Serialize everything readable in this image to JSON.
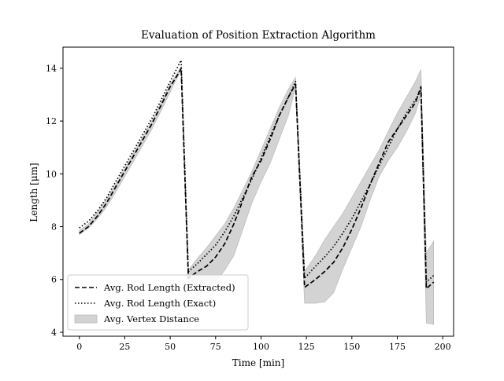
{
  "chart_data": {
    "type": "line",
    "title": "Evaluation of Position Extraction Algorithm",
    "xlabel": "Time [min]",
    "ylabel": "Length [μm]",
    "xlim": [
      -9,
      206
    ],
    "ylim": [
      3.85,
      14.8
    ],
    "xticks": [
      0,
      25,
      50,
      75,
      100,
      125,
      150,
      175,
      200
    ],
    "yticks": [
      4,
      6,
      8,
      10,
      12,
      14
    ],
    "grid": false,
    "legend_position": "lower-left",
    "colors": {
      "extracted": "#000000",
      "exact": "#000000",
      "band_fill": "#d3d3d3",
      "band_edge": "#bdbdbd"
    },
    "series": [
      {
        "name": "Avg. Rod Length (Extracted)",
        "style": "dashed",
        "points": [
          [
            0,
            7.75
          ],
          [
            5,
            8.0
          ],
          [
            10,
            8.4
          ],
          [
            15,
            8.9
          ],
          [
            20,
            9.5
          ],
          [
            25,
            10.1
          ],
          [
            30,
            10.7
          ],
          [
            35,
            11.3
          ],
          [
            40,
            11.9
          ],
          [
            45,
            12.6
          ],
          [
            50,
            13.3
          ],
          [
            55,
            13.85
          ],
          [
            56,
            14.0
          ],
          [
            60,
            6.05
          ],
          [
            65,
            6.3
          ],
          [
            70,
            6.5
          ],
          [
            75,
            6.85
          ],
          [
            80,
            7.35
          ],
          [
            85,
            8.1
          ],
          [
            90,
            9.0
          ],
          [
            95,
            9.9
          ],
          [
            100,
            10.5
          ],
          [
            105,
            11.3
          ],
          [
            110,
            12.2
          ],
          [
            115,
            12.9
          ],
          [
            119,
            13.4
          ],
          [
            124,
            5.7
          ],
          [
            130,
            6.0
          ],
          [
            135,
            6.3
          ],
          [
            140,
            6.65
          ],
          [
            145,
            7.2
          ],
          [
            150,
            7.9
          ],
          [
            155,
            8.7
          ],
          [
            160,
            9.6
          ],
          [
            165,
            10.4
          ],
          [
            170,
            11.2
          ],
          [
            175,
            11.7
          ],
          [
            180,
            12.2
          ],
          [
            185,
            12.7
          ],
          [
            188,
            13.3
          ],
          [
            191,
            5.65
          ],
          [
            195,
            5.9
          ]
        ]
      },
      {
        "name": "Avg. Rod Length (Exact)",
        "style": "dotted",
        "points": [
          [
            0,
            7.95
          ],
          [
            5,
            8.2
          ],
          [
            10,
            8.6
          ],
          [
            15,
            9.1
          ],
          [
            20,
            9.7
          ],
          [
            25,
            10.3
          ],
          [
            30,
            10.9
          ],
          [
            35,
            11.5
          ],
          [
            40,
            12.1
          ],
          [
            45,
            12.8
          ],
          [
            50,
            13.5
          ],
          [
            56,
            14.3
          ],
          [
            60,
            6.3
          ],
          [
            65,
            6.6
          ],
          [
            70,
            6.95
          ],
          [
            75,
            7.3
          ],
          [
            80,
            7.8
          ],
          [
            85,
            8.4
          ],
          [
            90,
            9.1
          ],
          [
            95,
            9.8
          ],
          [
            100,
            10.6
          ],
          [
            105,
            11.4
          ],
          [
            110,
            12.2
          ],
          [
            115,
            12.9
          ],
          [
            119,
            13.5
          ],
          [
            124,
            6.05
          ],
          [
            130,
            6.5
          ],
          [
            135,
            6.85
          ],
          [
            140,
            7.25
          ],
          [
            145,
            7.75
          ],
          [
            150,
            8.3
          ],
          [
            155,
            8.95
          ],
          [
            160,
            9.6
          ],
          [
            165,
            10.3
          ],
          [
            170,
            11.0
          ],
          [
            175,
            11.7
          ],
          [
            180,
            12.3
          ],
          [
            185,
            12.8
          ],
          [
            188,
            13.15
          ],
          [
            191,
            5.9
          ],
          [
            195,
            6.15
          ]
        ]
      }
    ],
    "band": {
      "name": "Avg. Vertex Distance",
      "upper": [
        [
          0,
          7.85
        ],
        [
          5,
          8.1
        ],
        [
          10,
          8.55
        ],
        [
          15,
          9.05
        ],
        [
          20,
          9.6
        ],
        [
          25,
          10.2
        ],
        [
          30,
          10.8
        ],
        [
          35,
          11.4
        ],
        [
          40,
          12.0
        ],
        [
          45,
          12.7
        ],
        [
          50,
          13.4
        ],
        [
          56,
          14.05
        ],
        [
          60,
          6.35
        ],
        [
          65,
          6.8
        ],
        [
          70,
          7.2
        ],
        [
          75,
          7.65
        ],
        [
          80,
          8.1
        ],
        [
          85,
          8.7
        ],
        [
          90,
          9.4
        ],
        [
          95,
          10.1
        ],
        [
          100,
          10.9
        ],
        [
          105,
          11.7
        ],
        [
          110,
          12.5
        ],
        [
          115,
          13.2
        ],
        [
          119,
          13.65
        ],
        [
          124,
          6.3
        ],
        [
          130,
          6.9
        ],
        [
          135,
          7.5
        ],
        [
          140,
          8.0
        ],
        [
          145,
          8.5
        ],
        [
          150,
          9.1
        ],
        [
          155,
          9.7
        ],
        [
          160,
          10.3
        ],
        [
          165,
          10.9
        ],
        [
          170,
          11.6
        ],
        [
          175,
          12.3
        ],
        [
          180,
          12.9
        ],
        [
          185,
          13.5
        ],
        [
          188,
          13.95
        ],
        [
          191,
          7.0
        ],
        [
          195,
          7.45
        ]
      ],
      "lower": [
        [
          195,
          4.3
        ],
        [
          191,
          4.35
        ],
        [
          188,
          13.0
        ],
        [
          185,
          12.3
        ],
        [
          180,
          11.6
        ],
        [
          175,
          11.0
        ],
        [
          170,
          10.5
        ],
        [
          165,
          9.9
        ],
        [
          160,
          9.0
        ],
        [
          155,
          8.0
        ],
        [
          150,
          7.2
        ],
        [
          145,
          6.4
        ],
        [
          140,
          5.5
        ],
        [
          135,
          5.15
        ],
        [
          130,
          5.1
        ],
        [
          124,
          5.1
        ],
        [
          119,
          13.3
        ],
        [
          115,
          12.2
        ],
        [
          110,
          11.3
        ],
        [
          105,
          10.4
        ],
        [
          100,
          9.7
        ],
        [
          95,
          8.9
        ],
        [
          90,
          7.9
        ],
        [
          85,
          6.9
        ],
        [
          80,
          6.35
        ],
        [
          75,
          5.9
        ],
        [
          70,
          5.7
        ],
        [
          65,
          5.75
        ],
        [
          60,
          5.8
        ],
        [
          56,
          13.95
        ],
        [
          50,
          13.1
        ],
        [
          45,
          12.4
        ],
        [
          40,
          11.7
        ],
        [
          35,
          11.1
        ],
        [
          30,
          10.5
        ],
        [
          25,
          9.9
        ],
        [
          20,
          9.3
        ],
        [
          15,
          8.75
        ],
        [
          10,
          8.3
        ],
        [
          5,
          7.95
        ],
        [
          0,
          7.7
        ]
      ]
    }
  }
}
